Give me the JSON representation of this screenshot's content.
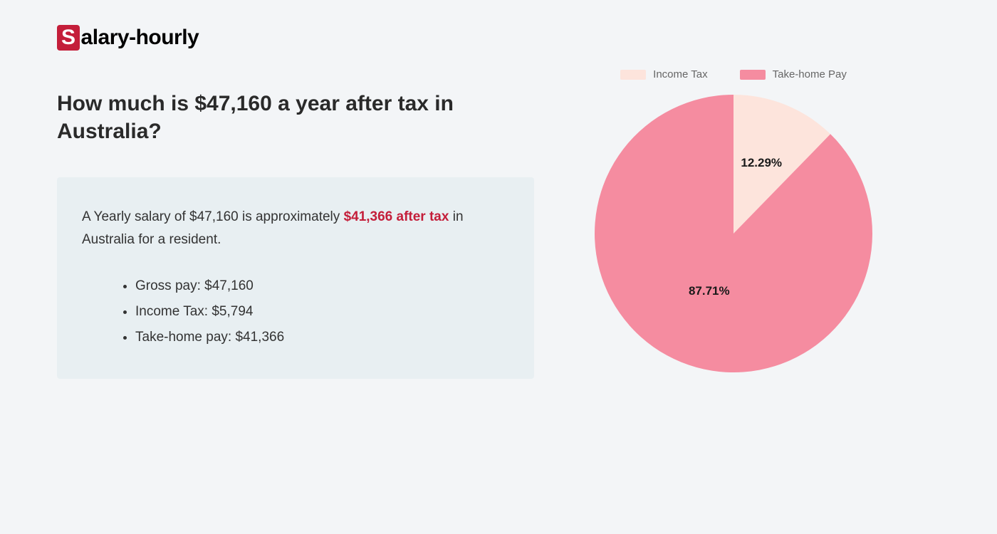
{
  "logo": {
    "prefix": "S",
    "rest": "alary-hourly"
  },
  "heading": "How much is $47,160 a year after tax in Australia?",
  "summary": {
    "before": "A Yearly salary of $47,160 is approximately ",
    "highlight": "$41,366 after tax",
    "after": " in Australia for a resident."
  },
  "bullets": [
    "Gross pay: $47,160",
    "Income Tax: $5,794",
    "Take-home pay: $41,366"
  ],
  "chart": {
    "type": "pie",
    "background_color": "#f3f5f7",
    "legend_position": "top",
    "legend_fontsize": 15,
    "legend_color": "#666666",
    "label_fontsize": 17,
    "label_color": "#1a1a1a",
    "radius": 195,
    "slices": [
      {
        "label": "Income Tax",
        "value": 12.29,
        "display": "12.29%",
        "color": "#fde4dc"
      },
      {
        "label": "Take-home Pay",
        "value": 87.71,
        "display": "87.71%",
        "color": "#f58ca0"
      }
    ]
  },
  "colors": {
    "page_bg": "#f3f5f7",
    "box_bg": "#e8eff2",
    "brand_red": "#c41e3a",
    "heading": "#2a2a2a",
    "body": "#333333"
  }
}
